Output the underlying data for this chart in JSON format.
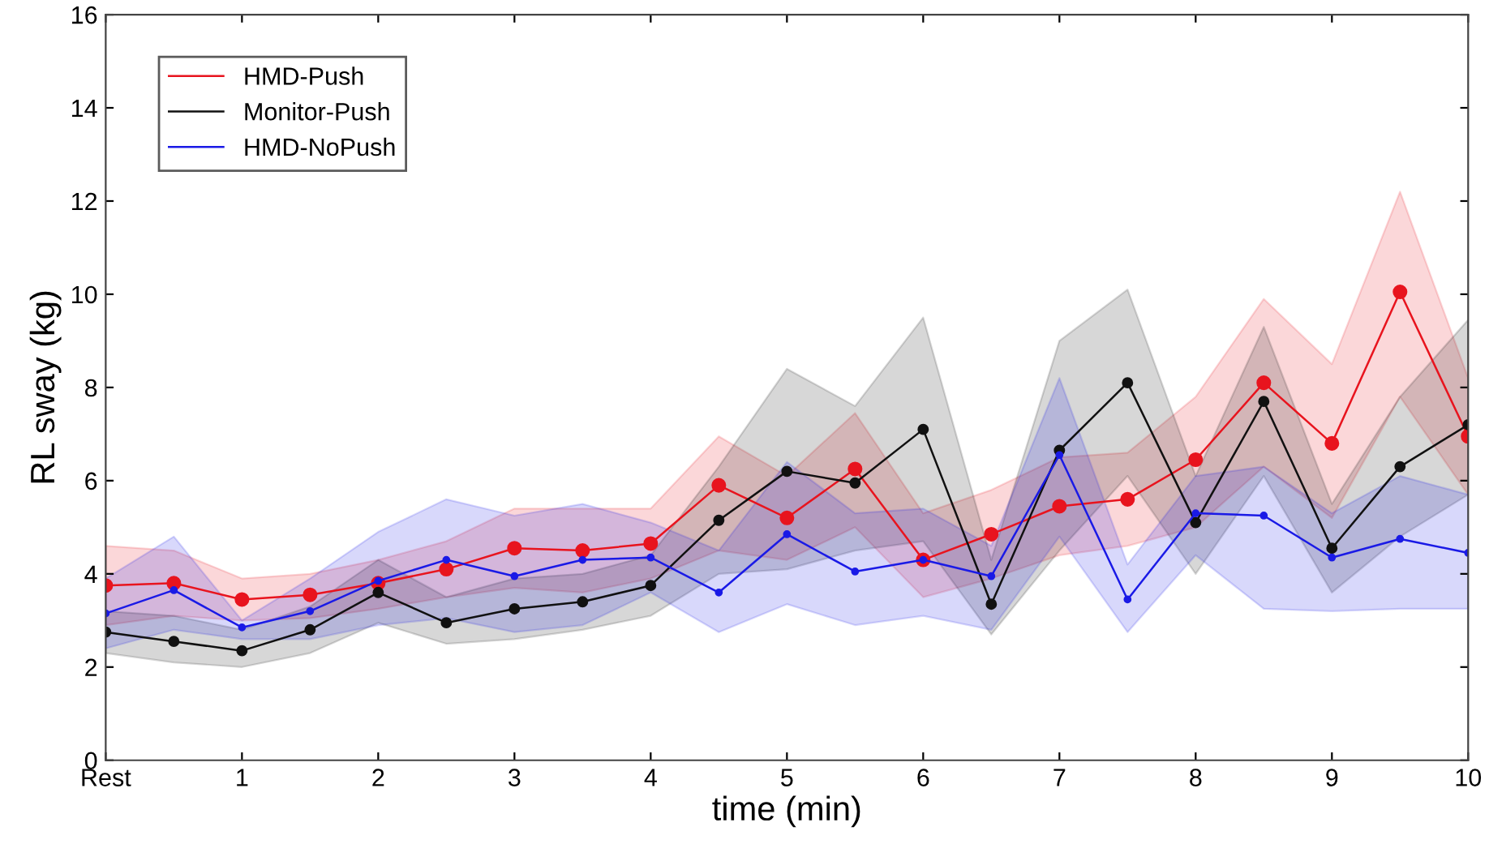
{
  "chart_data": {
    "type": "line",
    "xlabel": "time (min)",
    "ylabel": "RL sway (kg)",
    "x": [
      0,
      0.5,
      1,
      1.5,
      2,
      2.5,
      3,
      3.5,
      4,
      4.5,
      5,
      5.5,
      6,
      6.5,
      7,
      7.5,
      8,
      8.5,
      9,
      9.5,
      10
    ],
    "xlim": [
      0,
      10
    ],
    "xticks": [
      {
        "value": 0,
        "label": "Rest"
      },
      1,
      2,
      3,
      4,
      5,
      6,
      7,
      8,
      9,
      10
    ],
    "ylim": [
      0,
      16
    ],
    "yticks": [
      0,
      2,
      4,
      6,
      8,
      10,
      12,
      14,
      16
    ],
    "grid": false,
    "legend": "top left",
    "marker": "circle",
    "line_style": "solid",
    "series": [
      {
        "name": "HMD-Push",
        "color": "#e8141e",
        "values": [
          3.75,
          3.8,
          3.45,
          3.55,
          3.8,
          4.1,
          4.55,
          4.5,
          4.65,
          5.9,
          5.2,
          6.25,
          4.3,
          4.85,
          5.45,
          5.6,
          6.45,
          8.1,
          6.8,
          10.05,
          6.95
        ],
        "upper": [
          4.6,
          4.5,
          3.9,
          4.0,
          4.3,
          4.7,
          5.4,
          5.4,
          5.4,
          6.95,
          6.1,
          7.45,
          5.3,
          5.8,
          6.5,
          6.6,
          7.8,
          9.9,
          8.5,
          12.2,
          8.2
        ],
        "lower": [
          2.9,
          3.1,
          3.0,
          3.05,
          3.25,
          3.5,
          3.7,
          3.6,
          3.9,
          4.5,
          4.3,
          5.0,
          3.5,
          3.9,
          4.4,
          4.6,
          5.0,
          6.3,
          5.2,
          7.8,
          5.7
        ]
      },
      {
        "name": "Monitor-Push",
        "color": "#111111",
        "values": [
          2.75,
          2.55,
          2.35,
          2.8,
          3.6,
          2.95,
          3.25,
          3.4,
          3.75,
          5.15,
          6.2,
          5.95,
          7.1,
          3.35,
          6.65,
          8.1,
          5.1,
          7.7,
          4.55,
          6.3,
          7.2
        ],
        "upper": [
          3.2,
          3.1,
          2.8,
          3.3,
          4.3,
          3.5,
          3.9,
          4.0,
          4.4,
          6.3,
          8.4,
          7.6,
          9.5,
          4.3,
          9.0,
          10.1,
          6.1,
          9.3,
          5.5,
          7.8,
          9.45
        ],
        "lower": [
          2.3,
          2.1,
          2.0,
          2.3,
          2.95,
          2.5,
          2.6,
          2.8,
          3.1,
          4.0,
          4.1,
          4.5,
          4.7,
          2.7,
          4.5,
          6.1,
          4.0,
          6.1,
          3.6,
          4.8,
          5.7
        ]
      },
      {
        "name": "HMD-NoPush",
        "color": "#1a1ae6",
        "values": [
          3.15,
          3.65,
          2.85,
          3.2,
          3.85,
          4.3,
          3.95,
          4.3,
          4.35,
          3.6,
          4.85,
          4.05,
          4.3,
          3.95,
          6.55,
          3.45,
          5.3,
          5.25,
          4.35,
          4.75,
          4.45
        ],
        "upper": [
          3.9,
          4.8,
          3.0,
          3.9,
          4.9,
          5.6,
          5.25,
          5.5,
          5.1,
          4.5,
          6.4,
          5.3,
          5.4,
          4.6,
          8.2,
          4.2,
          6.1,
          6.3,
          5.3,
          6.1,
          5.7
        ],
        "lower": [
          2.4,
          2.8,
          2.6,
          2.6,
          2.9,
          3.05,
          2.75,
          2.9,
          3.6,
          2.75,
          3.35,
          2.9,
          3.1,
          2.8,
          4.8,
          2.75,
          4.4,
          3.25,
          3.2,
          3.25,
          3.25
        ]
      }
    ]
  }
}
